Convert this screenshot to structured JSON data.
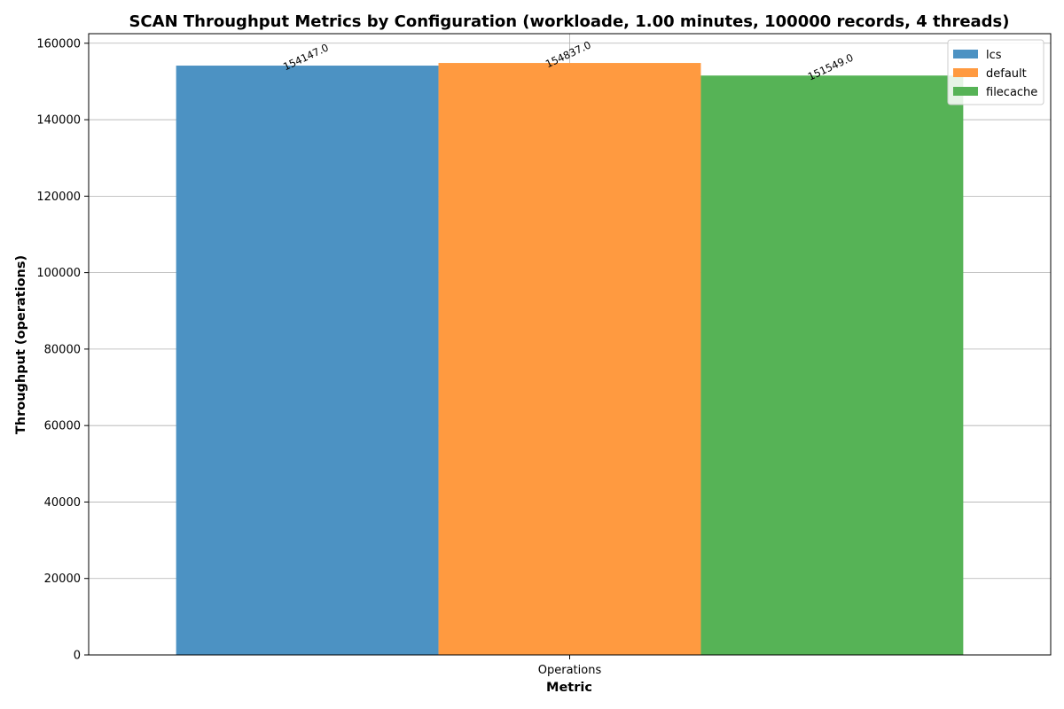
{
  "chart_data": {
    "type": "bar",
    "title": "SCAN Throughput Metrics by Configuration (workloade, 1.00 minutes, 100000 records, 4 threads)",
    "xlabel": "Metric",
    "ylabel": "Throughput (operations)",
    "categories": [
      "Operations"
    ],
    "series": [
      {
        "name": "lcs",
        "values": [
          154147.0
        ],
        "label": "154147.0",
        "color": "#4c92c3"
      },
      {
        "name": "default",
        "values": [
          154837.0
        ],
        "label": "154837.0",
        "color": "#ff9a40"
      },
      {
        "name": "filecache",
        "values": [
          151549.0
        ],
        "label": "151549.0",
        "color": "#56b356"
      }
    ],
    "yticks": [
      0,
      20000,
      40000,
      60000,
      80000,
      100000,
      120000,
      140000,
      160000
    ],
    "ylim": [
      0,
      162500
    ],
    "grid": true,
    "legend_position": "top-right"
  }
}
